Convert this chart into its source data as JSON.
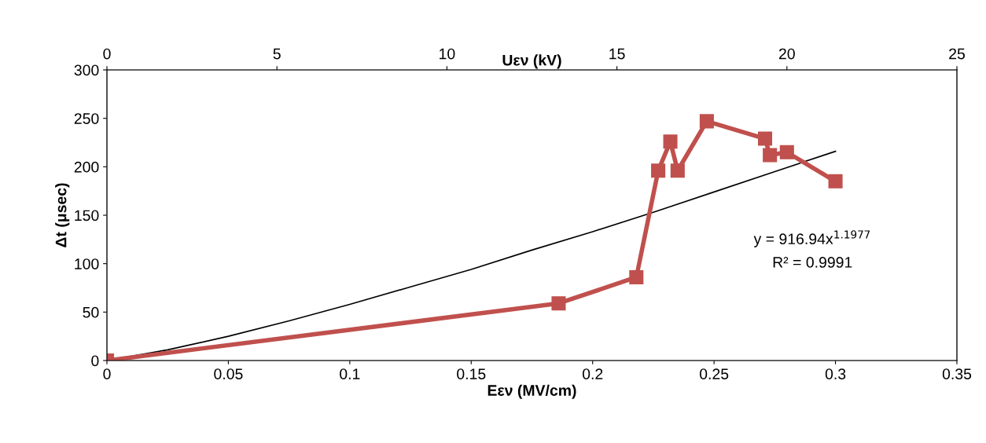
{
  "chart_data": {
    "type": "line",
    "xlabel": "Eεν (MV/cm)",
    "ylabel": "Δt (μsec)",
    "x2label": "Uεν (kV)",
    "xlim": [
      0,
      0.35
    ],
    "xticks": [
      0,
      0.05,
      0.1,
      0.15,
      0.2,
      0.25,
      0.3,
      0.35
    ],
    "ylim": [
      0,
      300
    ],
    "yticks": [
      0,
      50,
      100,
      150,
      200,
      250,
      300
    ],
    "x2lim": [
      0,
      25
    ],
    "x2ticks": [
      0,
      5,
      10,
      15,
      20,
      25
    ],
    "grid": false,
    "legend": false,
    "series": [
      {
        "color": "#c0504d",
        "marker": "square",
        "line_style": "solid",
        "x": [
          0,
          0.186,
          0.218,
          0.227,
          0.232,
          0.235,
          0.247,
          0.271,
          0.273,
          0.28,
          0.3
        ],
        "values": [
          0,
          59,
          86,
          196,
          226,
          196,
          247,
          229,
          212,
          215,
          185
        ]
      },
      {
        "color": "#000000",
        "marker": "none",
        "line_style": "solid",
        "x": [
          0,
          0.025,
          0.05,
          0.075,
          0.1,
          0.125,
          0.15,
          0.175,
          0.2,
          0.225,
          0.25,
          0.275,
          0.3
        ],
        "values": [
          0,
          11,
          25,
          41,
          58,
          76,
          94,
          114,
          133,
          153,
          174,
          195,
          216
        ]
      }
    ],
    "annotations": [
      "y = 916.94x$^{1.1977}$",
      "R² = 0.9991"
    ]
  }
}
